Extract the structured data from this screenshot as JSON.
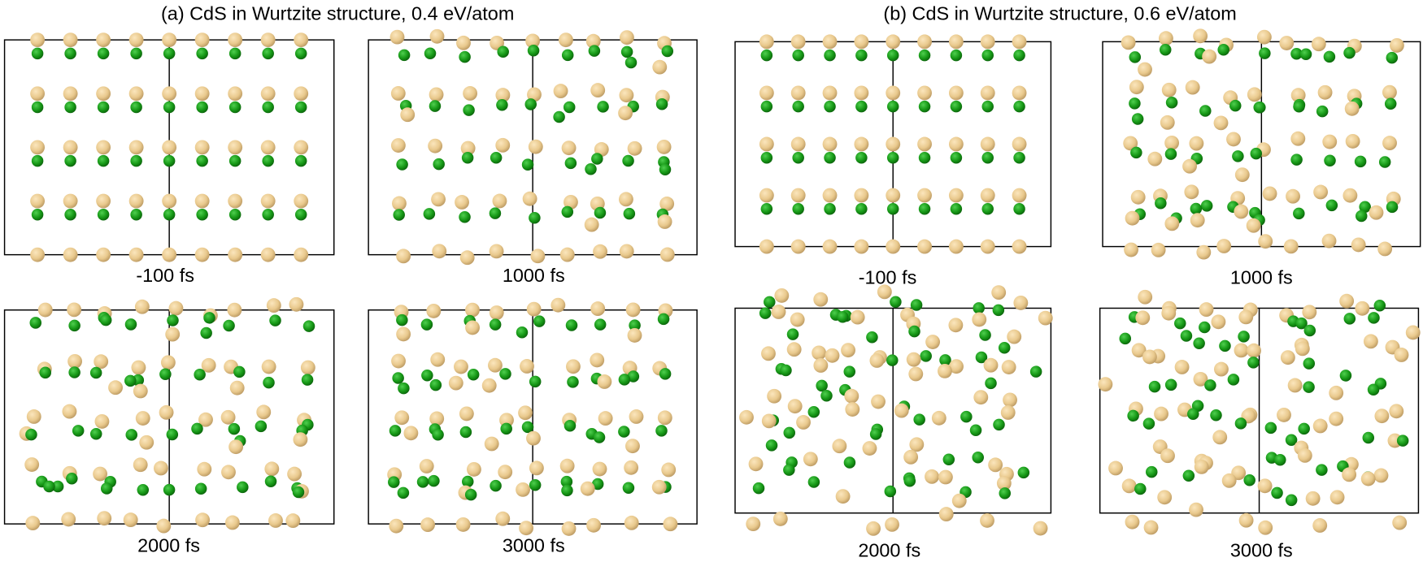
{
  "figure": {
    "groups": [
      {
        "title": "(a) CdS in Wurtzite structure, 0.4 eV/atom",
        "snapshots": [
          "-100 fs",
          "1000 fs",
          "2000 fs",
          "3000 fs"
        ]
      },
      {
        "title": "(b) CdS in Wurtzite structure, 0.6 eV/atom",
        "snapshots": [
          "-100 fs",
          "1000 fs",
          "2000 fs",
          "3000 fs"
        ]
      }
    ]
  }
}
